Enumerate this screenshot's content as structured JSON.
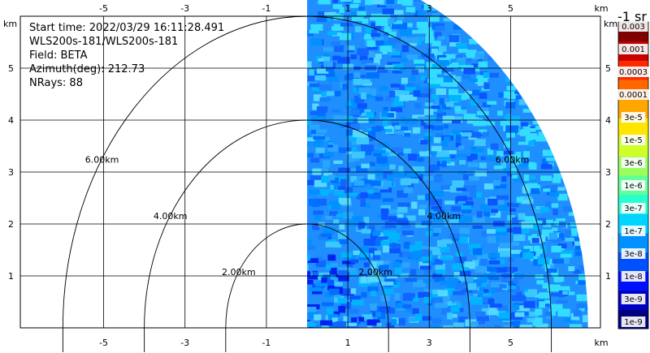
{
  "info": {
    "start_time": "Start time: 2022/03/29 16:11:28.491",
    "instrument": "WLS200s-181/WLS200s-181",
    "field": "Field: BETA",
    "azimuth": "Azimuth(deg): 212.73",
    "nrays": "NRays: 88"
  },
  "axis_unit": "km",
  "colorbar": {
    "unit_label": "-1 sr",
    "labels": [
      "0.003",
      "0.001",
      "0.0003",
      "0.0001",
      "3e-5",
      "1e-5",
      "3e-6",
      "1e-6",
      "3e-7",
      "1e-7",
      "3e-8",
      "1e-8",
      "3e-9",
      "1e-9"
    ],
    "colors": [
      "#00007f",
      "#0000c4",
      "#0010ff",
      "#0050ff",
      "#0090ff",
      "#00d4ff",
      "#29ffce",
      "#60ff97",
      "#9aff5d",
      "#ceff29",
      "#ffe500",
      "#ffa600",
      "#ff6800",
      "#ff2900",
      "#c40000",
      "#7f0000"
    ]
  },
  "chart_data": {
    "type": "heatmap",
    "xlim": [
      -6,
      7
    ],
    "ylim": [
      0,
      6
    ],
    "xticks": [
      -5,
      -3,
      -1,
      1,
      3,
      5
    ],
    "yticks": [
      1,
      2,
      3,
      4,
      5
    ],
    "range_rings_km": [
      2,
      4,
      6
    ],
    "ring_labels": [
      "2.00km",
      "4.00km",
      "6.00km"
    ],
    "data_sector": {
      "x_range_km": [
        1.0,
        7.0
      ],
      "max_range_km": 6.9,
      "dominant_value_range": [
        "1e-8",
        "1e-7"
      ]
    }
  }
}
